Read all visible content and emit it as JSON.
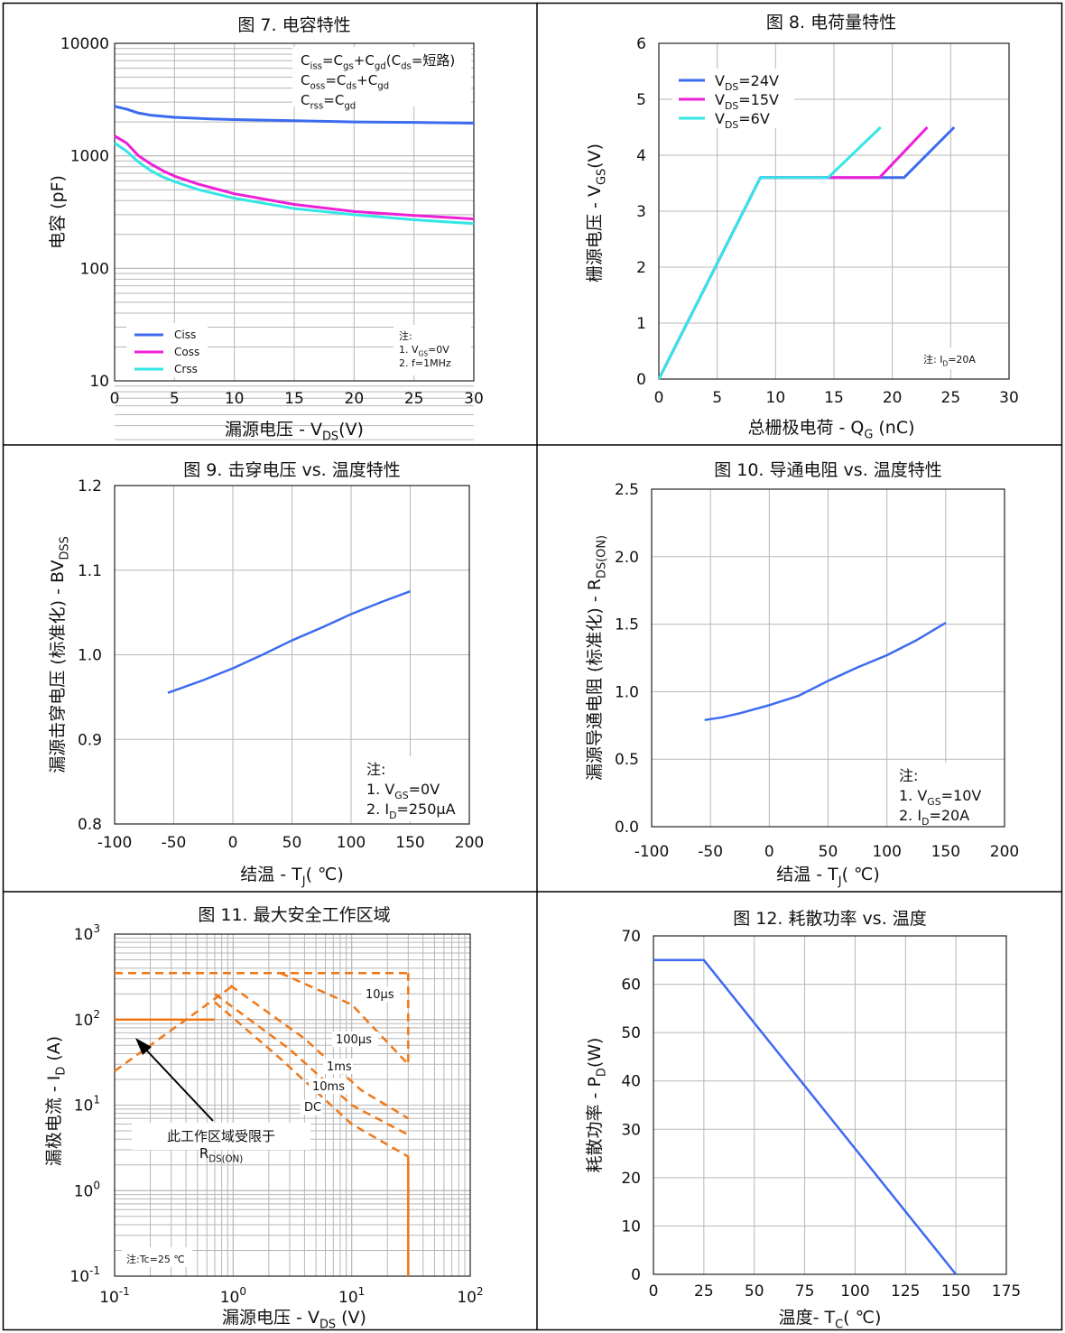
{
  "colors": {
    "blue": "#3d6bf0",
    "magenta": "#ee1fd7",
    "cyan": "#33e6e6",
    "orange": "#f07818",
    "grid": "#b7b7b7",
    "axis": "#222222"
  },
  "chart_data": [
    {
      "type": "line",
      "title": "图 7. 电容特性",
      "xlabel": "漏源电压 - V",
      "xlabel_sub": "DS",
      "xlabel_tail": "(V)",
      "ylabel": "电容 (pF)",
      "xlim": [
        0,
        30
      ],
      "ylim": [
        10,
        10000
      ],
      "yscale": "log",
      "xticks": [
        "0",
        "5",
        "10",
        "15",
        "20",
        "25",
        "30"
      ],
      "yticks": [
        "10",
        "100",
        "1000",
        "10000"
      ],
      "legend": [
        "Ciss",
        "Coss",
        "Crss"
      ],
      "formula": [
        {
          "base": "C",
          "sub": "iss",
          "rest": "=C",
          "sub2": "gs",
          "rest2": "+C",
          "sub3": "gd",
          "rest3": "(C",
          "sub4": "ds",
          "rest4": "=短路)"
        },
        {
          "base": "C",
          "sub": "oss",
          "rest": "=C",
          "sub2": "ds",
          "rest2": "+C",
          "sub3": "gd",
          "rest3": "",
          "sub4": "",
          "rest4": ""
        },
        {
          "base": "C",
          "sub": "rss",
          "rest": "=C",
          "sub2": "gd",
          "rest2": "",
          "sub3": "",
          "rest3": "",
          "sub4": "",
          "rest4": ""
        }
      ],
      "note_title": "注:",
      "note_lines": [
        {
          "pre": "1. V",
          "sub": "GS",
          "post": "=0V"
        },
        {
          "pre": "2. f=1MHz",
          "sub": "",
          "post": ""
        }
      ],
      "series": [
        {
          "name": "Ciss",
          "color_key": "blue",
          "x": [
            0,
            1,
            2,
            3,
            5,
            8,
            10,
            15,
            20,
            25,
            30
          ],
          "y": [
            2750,
            2600,
            2400,
            2300,
            2200,
            2130,
            2100,
            2050,
            2000,
            1980,
            1950
          ]
        },
        {
          "name": "Coss",
          "color_key": "magenta",
          "x": [
            0,
            1,
            2,
            3,
            4,
            5,
            7,
            10,
            15,
            20,
            25,
            30
          ],
          "y": [
            1500,
            1300,
            1000,
            850,
            740,
            660,
            560,
            460,
            370,
            320,
            295,
            275
          ]
        },
        {
          "name": "Crss",
          "color_key": "cyan",
          "x": [
            0,
            1,
            2,
            3,
            4,
            5,
            7,
            10,
            15,
            20,
            25,
            30
          ],
          "y": [
            1300,
            1100,
            880,
            740,
            650,
            590,
            500,
            420,
            340,
            300,
            270,
            250
          ]
        }
      ]
    },
    {
      "type": "line",
      "title": "图 8. 电荷量特性",
      "xlabel": "总栅极电荷 - Q",
      "xlabel_sub": "G",
      "xlabel_tail": " (nC)",
      "ylabel": "栅源电压 - V",
      "ylabel_sub": "GS",
      "ylabel_tail": "(V)",
      "xlim": [
        0,
        30
      ],
      "ylim": [
        0,
        6
      ],
      "xticks": [
        "0",
        "5",
        "10",
        "15",
        "20",
        "25",
        "30"
      ],
      "yticks": [
        "0",
        "1",
        "2",
        "3",
        "4",
        "5",
        "6"
      ],
      "legend": [
        {
          "pre": "V",
          "sub": "DS",
          "post": "=24V"
        },
        {
          "pre": "V",
          "sub": "DS",
          "post": "=15V"
        },
        {
          "pre": "V",
          "sub": "DS",
          "post": "=6V"
        }
      ],
      "note": {
        "pre": "注:  I",
        "sub": "D",
        "post": "=20A"
      },
      "series": [
        {
          "name": "VDS=24V",
          "color_key": "blue",
          "x": [
            0,
            8.7,
            21,
            25.3
          ],
          "y": [
            0,
            3.6,
            3.6,
            4.5
          ]
        },
        {
          "name": "VDS=15V",
          "color_key": "magenta",
          "x": [
            0,
            8.7,
            18.9,
            23
          ],
          "y": [
            0,
            3.6,
            3.6,
            4.5
          ]
        },
        {
          "name": "VDS=6V",
          "color_key": "cyan",
          "x": [
            0,
            8.7,
            14.5,
            19
          ],
          "y": [
            0,
            3.6,
            3.6,
            4.5
          ]
        }
      ]
    },
    {
      "type": "line",
      "title": "图 9. 击穿电压 vs. 温度特性",
      "xlabel": "结温 - T",
      "xlabel_sub": "J",
      "xlabel_tail": "( ℃)",
      "ylabel": "漏源击穿电压 (标准化)  - BV",
      "ylabel_sub": "DSS",
      "xlim": [
        -100,
        200
      ],
      "ylim": [
        0.8,
        1.2
      ],
      "xticks": [
        "-100",
        "-50",
        "0",
        "50",
        "100",
        "150",
        "200"
      ],
      "yticks": [
        "0.8",
        "0.9",
        "1.0",
        "1.1",
        "1.2"
      ],
      "note_title": "注:",
      "note_lines": [
        {
          "pre": "1. V",
          "sub": "GS",
          "post": "=0V"
        },
        {
          "pre": "2. I",
          "sub": "D",
          "post": "=250μA"
        }
      ],
      "series": [
        {
          "name": "BVDSS",
          "color_key": "blue",
          "x": [
            -55,
            -25,
            0,
            25,
            50,
            75,
            100,
            125,
            150
          ],
          "y": [
            0.955,
            0.97,
            0.984,
            1.0,
            1.017,
            1.032,
            1.048,
            1.062,
            1.075
          ]
        }
      ]
    },
    {
      "type": "line",
      "title": "图 10. 导通电阻 vs. 温度特性",
      "xlabel": "结温 - T",
      "xlabel_sub": "J",
      "xlabel_tail": "( ℃)",
      "ylabel": "漏源导通电阻 (标准化) - R",
      "ylabel_sub": "DS(ON)",
      "xlim": [
        -100,
        200
      ],
      "ylim": [
        0,
        2.5
      ],
      "xticks": [
        "-100",
        "-50",
        "0",
        "50",
        "100",
        "150",
        "200"
      ],
      "yticks": [
        "0.0",
        "0.5",
        "1.0",
        "1.5",
        "2.0",
        "2.5"
      ],
      "note_title": "注:",
      "note_lines": [
        {
          "pre": "1. V",
          "sub": "GS",
          "post": "=10V"
        },
        {
          "pre": "2. I",
          "sub": "D",
          "post": "=20A"
        }
      ],
      "series": [
        {
          "name": "RDS(ON)",
          "color_key": "blue",
          "x": [
            -55,
            -40,
            -25,
            0,
            25,
            50,
            75,
            100,
            125,
            150
          ],
          "y": [
            0.79,
            0.81,
            0.84,
            0.9,
            0.97,
            1.08,
            1.18,
            1.27,
            1.38,
            1.51
          ]
        }
      ]
    },
    {
      "type": "line",
      "title": "图 11. 最大安全工作区域",
      "xlabel": "漏源电压  -  V",
      "xlabel_sub": "DS",
      "xlabel_tail": " (V)",
      "ylabel": "漏极电流  -  I",
      "ylabel_sub": "D",
      "ylabel_tail": " (A)",
      "xscale": "log",
      "yscale": "log",
      "xlim": [
        0.1,
        100
      ],
      "ylim": [
        0.1,
        1000
      ],
      "xticks": [
        {
          "base": "10",
          "exp": "-1"
        },
        {
          "base": "10",
          "exp": "0"
        },
        {
          "base": "10",
          "exp": "1"
        },
        {
          "base": "10",
          "exp": "2"
        }
      ],
      "yticks": [
        {
          "base": "10",
          "exp": "-1"
        },
        {
          "base": "10",
          "exp": "0"
        },
        {
          "base": "10",
          "exp": "1"
        },
        {
          "base": "10",
          "exp": "2"
        },
        {
          "base": "10",
          "exp": "3"
        }
      ],
      "labels": [
        "10μs",
        "100μs",
        "1ms",
        "10ms",
        "DC"
      ],
      "annotation": "此工作区域受限于",
      "annotation2": {
        "pre": "R",
        "sub": "DS(ON)"
      },
      "note": "注:Tc=25 ℃",
      "series": [
        {
          "name": "RDS(ON) limit",
          "color_key": "orange",
          "dashed": true,
          "x": [
            0.1,
            1.0
          ],
          "y": [
            25,
            250
          ]
        },
        {
          "name": "10μs",
          "color_key": "orange",
          "dashed": true,
          "x": [
            0.1,
            30,
            30
          ],
          "y": [
            350,
            350,
            300
          ]
        },
        {
          "name": "100μs",
          "color_key": "orange",
          "dashed": true,
          "x": [
            2.5,
            10,
            30,
            30
          ],
          "y": [
            350,
            150,
            30,
            350
          ]
        },
        {
          "name": "1ms",
          "color_key": "orange",
          "dashed": true,
          "x": [
            0.95,
            4,
            12,
            30
          ],
          "y": [
            250,
            60,
            15,
            7
          ]
        },
        {
          "name": "10ms",
          "color_key": "orange",
          "dashed": true,
          "x": [
            0.7,
            3,
            10,
            30
          ],
          "y": [
            200,
            45,
            10,
            4.5
          ]
        },
        {
          "name": "DC",
          "color_key": "orange",
          "dashed": true,
          "x": [
            0.7,
            2.5,
            10,
            30
          ],
          "y": [
            160,
            35,
            6,
            2.5
          ]
        },
        {
          "name": "DC solid",
          "color_key": "orange",
          "dashed": false,
          "x": [
            0.1,
            0.7,
            0.7
          ],
          "y": [
            100,
            100,
            100
          ]
        },
        {
          "name": "DC solid limit",
          "color_key": "orange",
          "dashed": false,
          "x": [
            30,
            30
          ],
          "y": [
            2.5,
            0.1
          ]
        }
      ]
    },
    {
      "type": "line",
      "title": "图 12. 耗散功率 vs. 温度",
      "xlabel": "温度- T",
      "xlabel_sub": "C",
      "xlabel_tail": "( ℃)",
      "ylabel": "耗散功率  -  P",
      "ylabel_sub": "D",
      "ylabel_tail": "(W)",
      "xlim": [
        0,
        175
      ],
      "ylim": [
        0,
        70
      ],
      "xticks": [
        "0",
        "25",
        "50",
        "75",
        "100",
        "125",
        "150",
        "175"
      ],
      "yticks": [
        "0",
        "10",
        "20",
        "30",
        "40",
        "50",
        "60",
        "70"
      ],
      "series": [
        {
          "name": "PD",
          "color_key": "blue",
          "x": [
            0,
            25,
            150
          ],
          "y": [
            65,
            65,
            0
          ]
        }
      ]
    }
  ]
}
